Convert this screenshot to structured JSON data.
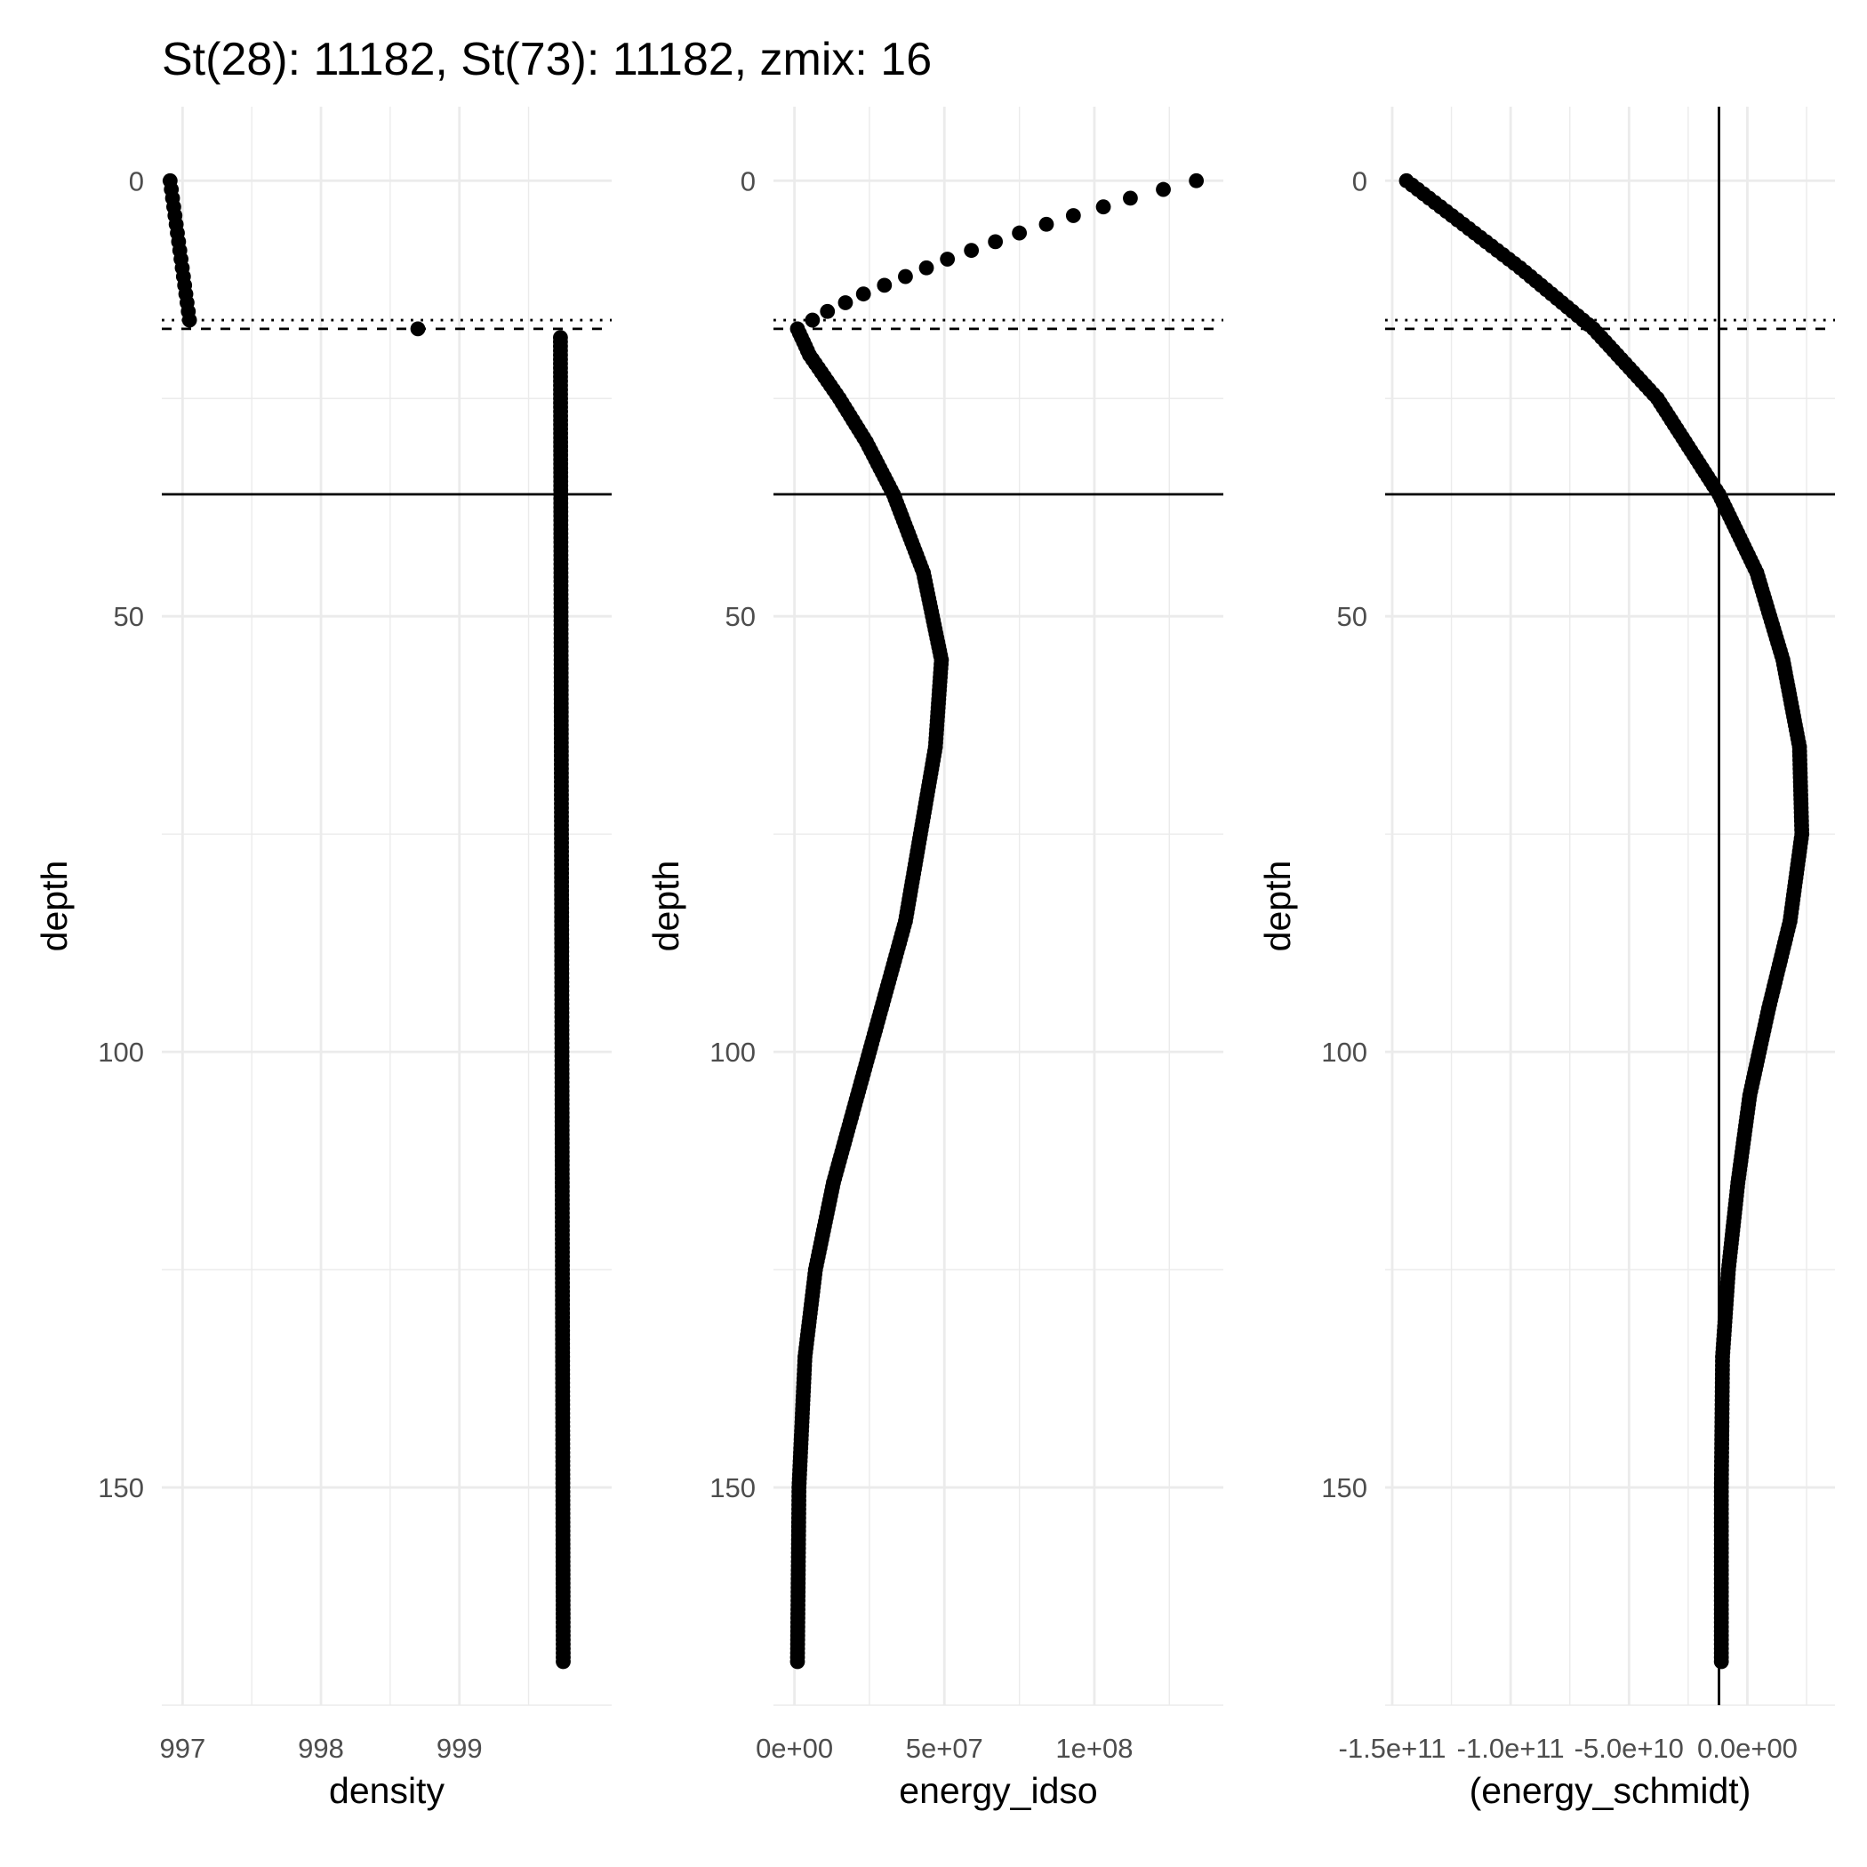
{
  "title": "St(28): 11182, St(73): 11182, zmix: 16",
  "chart_data": [
    {
      "type": "scatter",
      "xlabel": "density",
      "ylabel": "depth",
      "xlim": [
        996.85,
        1000.1
      ],
      "ylim": [
        175,
        -8.5
      ],
      "x_major_ticks": [
        997,
        998,
        999
      ],
      "x_minor_ticks": [
        996.5,
        997.5,
        998.5,
        999.5
      ],
      "y_major_ticks": [
        0,
        50,
        100,
        150
      ],
      "y_minor_ticks": [
        25,
        75,
        125,
        175
      ],
      "x_tick_labels": [
        "997",
        "998",
        "999"
      ],
      "y_tick_labels": [
        "0",
        "50",
        "100",
        "150"
      ],
      "hlines": [
        {
          "y": 16,
          "style": "dotted"
        },
        {
          "y": 17,
          "style": "dashed"
        },
        {
          "y": 36,
          "style": "solid"
        }
      ],
      "vlines": [],
      "curve": {
        "segments": [
          {
            "depth_from": 0,
            "depth_to": 16,
            "step": 1,
            "x_knots": [
              [
                0,
                996.91
              ],
              [
                16,
                997.05
              ]
            ]
          },
          {
            "depth_from": 17,
            "depth_to": 17,
            "step": 1,
            "x_knots": [
              [
                17,
                998.7
              ]
            ]
          },
          {
            "depth_from": 18,
            "depth_to": 170,
            "step": 0.5,
            "x_knots": [
              [
                18,
                999.73
              ],
              [
                170,
                999.75
              ]
            ]
          }
        ]
      }
    },
    {
      "type": "scatter",
      "xlabel": "energy_idso",
      "ylabel": "depth",
      "xlim": [
        -7000000.0,
        143000000.0
      ],
      "ylim": [
        175,
        -8.5
      ],
      "x_major_ticks": [
        0,
        50000000,
        100000000
      ],
      "x_minor_ticks": [
        25000000,
        75000000,
        125000000
      ],
      "y_major_ticks": [
        0,
        50,
        100,
        150
      ],
      "y_minor_ticks": [
        25,
        75,
        125,
        175
      ],
      "x_tick_labels": [
        "0e+00",
        "5e+07",
        "1e+08"
      ],
      "y_tick_labels": [
        "0",
        "50",
        "100",
        "150"
      ],
      "hlines": [
        {
          "y": 16,
          "style": "dotted"
        },
        {
          "y": 17,
          "style": "dashed"
        },
        {
          "y": 36,
          "style": "solid"
        }
      ],
      "vlines": [],
      "curve": {
        "segments": [
          {
            "depth_from": 0,
            "depth_to": 16,
            "step": 1,
            "x_knots": [
              [
                0,
                134000000.0
              ],
              [
                1,
                123000000.0
              ],
              [
                2,
                112000000.0
              ],
              [
                3,
                103000000.0
              ],
              [
                4,
                93000000.0
              ],
              [
                5,
                84000000.0
              ],
              [
                6,
                75000000.0
              ],
              [
                7,
                67000000.0
              ],
              [
                8,
                59000000.0
              ],
              [
                9,
                51000000.0
              ],
              [
                10,
                44000000.0
              ],
              [
                11,
                37000000.0
              ],
              [
                12,
                30000000.0
              ],
              [
                13,
                23000000.0
              ],
              [
                14,
                17000000.0
              ],
              [
                15,
                11000000.0
              ],
              [
                16,
                6000000.0
              ]
            ]
          },
          {
            "depth_from": 17,
            "depth_to": 170,
            "step": 0.5,
            "x_knots": [
              [
                17,
                1000000.0
              ],
              [
                20,
                5000000.0
              ],
              [
                25,
                15000000.0
              ],
              [
                30,
                24000000.0
              ],
              [
                36,
                33000000.0
              ],
              [
                45,
                43000000.0
              ],
              [
                55,
                49000000.0
              ],
              [
                65,
                47000000.0
              ],
              [
                75,
                42000000.0
              ],
              [
                85,
                37000000.0
              ],
              [
                95,
                29000000.0
              ],
              [
                105,
                21000000.0
              ],
              [
                115,
                13000000.0
              ],
              [
                125,
                7000000.0
              ],
              [
                135,
                3500000.0
              ],
              [
                150,
                1500000.0
              ],
              [
                170,
                1000000.0
              ]
            ]
          }
        ]
      }
    },
    {
      "type": "scatter",
      "xlabel": "(energy_schmidt)",
      "ylabel": "depth",
      "xlim": [
        -153000000000.0,
        37000000000.0
      ],
      "ylim": [
        175,
        -8.5
      ],
      "x_major_ticks": [
        -150000000000,
        -100000000000,
        -50000000000,
        0
      ],
      "x_minor_ticks": [
        -125000000000,
        -75000000000,
        -25000000000,
        25000000000
      ],
      "x_tick_labels": [
        "-1.5e+11",
        "-1.0e+11",
        "-5.0e+10",
        "0.0e+00"
      ],
      "y_major_ticks": [
        0,
        50,
        100,
        150
      ],
      "y_minor_ticks": [
        25,
        75,
        125,
        175
      ],
      "y_tick_labels": [
        "0",
        "50",
        "100",
        "150"
      ],
      "hlines": [
        {
          "y": 16,
          "style": "dotted"
        },
        {
          "y": 17,
          "style": "dashed"
        },
        {
          "y": 36,
          "style": "solid"
        }
      ],
      "vlines": [
        {
          "x": -12000000000.0,
          "style": "solid"
        }
      ],
      "curve": {
        "segments": [
          {
            "depth_from": 0,
            "depth_to": 170,
            "step": 0.5,
            "x_knots": [
              [
                0,
                -144000000000.0
              ],
              [
                5,
                -120000000000.0
              ],
              [
                10,
                -96000000000.0
              ],
              [
                17,
                -65000000000.0
              ],
              [
                25,
                -38000000000.0
              ],
              [
                36,
                -12000000000.0
              ],
              [
                45,
                4000000000.0
              ],
              [
                55,
                15000000000.0
              ],
              [
                65,
                22000000000.0
              ],
              [
                75,
                23000000000.0
              ],
              [
                85,
                18000000000.0
              ],
              [
                95,
                9000000000.0
              ],
              [
                105,
                1000000000.0
              ],
              [
                115,
                -4000000000.0
              ],
              [
                125,
                -8000000000.0
              ],
              [
                135,
                -10500000000.0
              ],
              [
                150,
                -11000000000.0
              ],
              [
                170,
                -11000000000.0
              ]
            ]
          }
        ]
      }
    }
  ]
}
